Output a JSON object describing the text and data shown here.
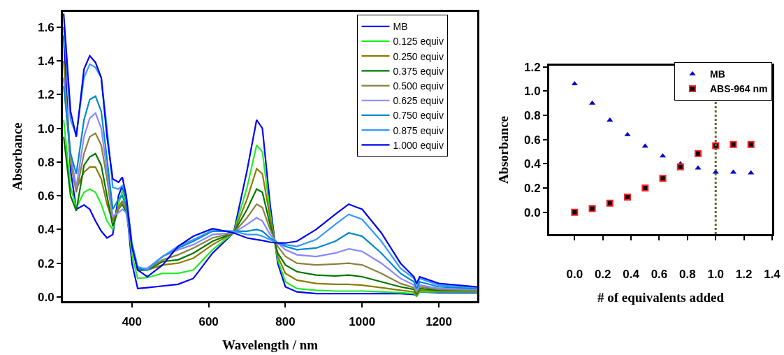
{
  "chart_data": [
    {
      "type": "line",
      "xlabel": "Wavelength / nm",
      "ylabel": "Absorbance",
      "xlim": [
        220,
        1300
      ],
      "ylim": [
        -0.025,
        1.69
      ],
      "xticks": [
        400,
        600,
        800,
        1000,
        1200
      ],
      "yticks": [
        {
          "value": 0,
          "label": "0.0"
        },
        {
          "value": 0.2,
          "label": "0.2"
        },
        {
          "value": 0.4,
          "label": "0.4"
        },
        {
          "value": 0.6,
          "label": "0.6"
        },
        {
          "value": 0.8,
          "label": "0.8"
        },
        {
          "value": 1.0,
          "label": "1.0"
        },
        {
          "value": 1.2,
          "label": "1.2"
        },
        {
          "value": 1.4,
          "label": "1.4"
        },
        {
          "value": 1.6,
          "label": "1.6"
        }
      ],
      "grid": false,
      "legend": "top right",
      "marker": "none",
      "line_style": "solid",
      "x": [
        222,
        240,
        255,
        275,
        290,
        305,
        320,
        335,
        350,
        365,
        375,
        385,
        400,
        415,
        440,
        480,
        520,
        560,
        610,
        665,
        700,
        725,
        740,
        760,
        780,
        800,
        830,
        880,
        930,
        965,
        1000,
        1050,
        1100,
        1135,
        1142,
        1150,
        1200,
        1300
      ],
      "series": [
        {
          "name": "MB",
          "color": "#0000ff",
          "values": [
            1.55,
            0.75,
            0.52,
            0.545,
            0.52,
            0.45,
            0.39,
            0.35,
            0.37,
            0.6,
            0.66,
            0.55,
            0.2,
            0.05,
            0.055,
            0.065,
            0.075,
            0.11,
            0.26,
            0.38,
            0.75,
            1.05,
            1.0,
            0.55,
            0.2,
            0.06,
            0.03,
            0.02,
            0.02,
            0.02,
            0.02,
            0.02,
            0.02,
            0.015,
            0.005,
            0.03,
            0.025,
            0.025
          ]
        },
        {
          "name": "0.125 equiv",
          "color": "#22ee22",
          "values": [
            1.05,
            0.65,
            0.53,
            0.62,
            0.64,
            0.62,
            0.55,
            0.45,
            0.4,
            0.55,
            0.63,
            0.55,
            0.25,
            0.11,
            0.115,
            0.14,
            0.14,
            0.16,
            0.28,
            0.38,
            0.65,
            0.9,
            0.86,
            0.5,
            0.22,
            0.09,
            0.05,
            0.04,
            0.035,
            0.035,
            0.035,
            0.03,
            0.025,
            0.02,
            0.005,
            0.03,
            0.03,
            0.03
          ]
        },
        {
          "name": "0.250 equiv",
          "color": "#8b7d00",
          "values": [
            1.4,
            0.8,
            0.64,
            0.74,
            0.77,
            0.77,
            0.7,
            0.55,
            0.45,
            0.53,
            0.57,
            0.52,
            0.3,
            0.16,
            0.16,
            0.19,
            0.2,
            0.23,
            0.31,
            0.38,
            0.58,
            0.76,
            0.73,
            0.47,
            0.24,
            0.14,
            0.1,
            0.08,
            0.075,
            0.075,
            0.07,
            0.055,
            0.04,
            0.03,
            0.01,
            0.04,
            0.035,
            0.035
          ]
        },
        {
          "name": "0.375 equiv",
          "color": "#007700",
          "values": [
            0.95,
            0.6,
            0.51,
            0.78,
            0.83,
            0.85,
            0.78,
            0.6,
            0.42,
            0.52,
            0.55,
            0.5,
            0.3,
            0.16,
            0.16,
            0.21,
            0.22,
            0.26,
            0.33,
            0.38,
            0.52,
            0.64,
            0.62,
            0.43,
            0.26,
            0.19,
            0.15,
            0.13,
            0.125,
            0.13,
            0.12,
            0.09,
            0.06,
            0.045,
            0.02,
            0.05,
            0.04,
            0.04
          ]
        },
        {
          "name": "0.500 equiv",
          "color": "#8b8040",
          "values": [
            1.3,
            0.8,
            0.62,
            0.85,
            0.95,
            0.97,
            0.9,
            0.7,
            0.46,
            0.52,
            0.56,
            0.52,
            0.3,
            0.17,
            0.165,
            0.22,
            0.25,
            0.29,
            0.35,
            0.38,
            0.47,
            0.55,
            0.53,
            0.4,
            0.3,
            0.24,
            0.2,
            0.19,
            0.195,
            0.2,
            0.19,
            0.14,
            0.08,
            0.055,
            0.025,
            0.06,
            0.045,
            0.04
          ]
        },
        {
          "name": "0.625 equiv",
          "color": "#8888ff",
          "values": [
            1.3,
            0.85,
            0.65,
            0.95,
            1.06,
            1.09,
            1.0,
            0.75,
            0.48,
            0.5,
            0.52,
            0.5,
            0.3,
            0.17,
            0.17,
            0.24,
            0.28,
            0.31,
            0.37,
            0.38,
            0.43,
            0.47,
            0.45,
            0.37,
            0.32,
            0.28,
            0.25,
            0.24,
            0.26,
            0.285,
            0.27,
            0.2,
            0.11,
            0.07,
            0.035,
            0.07,
            0.05,
            0.045
          ]
        },
        {
          "name": "0.750 equiv",
          "color": "#0088cc",
          "values": [
            1.25,
            0.85,
            0.73,
            1.05,
            1.17,
            1.19,
            1.1,
            0.82,
            0.52,
            0.58,
            0.6,
            0.54,
            0.3,
            0.17,
            0.16,
            0.24,
            0.29,
            0.33,
            0.39,
            0.39,
            0.39,
            0.4,
            0.39,
            0.35,
            0.32,
            0.3,
            0.28,
            0.29,
            0.33,
            0.38,
            0.36,
            0.26,
            0.14,
            0.09,
            0.05,
            0.09,
            0.06,
            0.05
          ]
        },
        {
          "name": "0.875 equiv",
          "color": "#3399ff",
          "values": [
            1.6,
            1.05,
            0.96,
            1.3,
            1.38,
            1.36,
            1.3,
            1.0,
            0.65,
            0.64,
            0.66,
            0.6,
            0.32,
            0.18,
            0.16,
            0.24,
            0.3,
            0.34,
            0.395,
            0.39,
            0.37,
            0.37,
            0.36,
            0.34,
            0.32,
            0.31,
            0.3,
            0.34,
            0.43,
            0.49,
            0.46,
            0.33,
            0.17,
            0.11,
            0.07,
            0.11,
            0.07,
            0.055
          ]
        },
        {
          "name": "1.000 equiv",
          "color": "#0000ee",
          "values": [
            1.68,
            1.1,
            0.95,
            1.35,
            1.43,
            1.39,
            1.3,
            0.95,
            0.7,
            0.68,
            0.71,
            0.6,
            0.3,
            0.16,
            0.12,
            0.19,
            0.3,
            0.36,
            0.405,
            0.38,
            0.35,
            0.34,
            0.335,
            0.325,
            0.32,
            0.32,
            0.33,
            0.4,
            0.49,
            0.55,
            0.52,
            0.38,
            0.2,
            0.12,
            0.08,
            0.12,
            0.08,
            0.06
          ]
        }
      ]
    },
    {
      "type": "scatter",
      "xlabel": "# of equivalents added",
      "ylabel": "Absorbance",
      "xlim": [
        -0.18,
        1.4
      ],
      "ylim": [
        -0.18,
        1.21
      ],
      "xticks": [
        {
          "value": 0,
          "label": "0.0"
        },
        {
          "value": 0.2,
          "label": "0.2"
        },
        {
          "value": 0.4,
          "label": "0.4"
        },
        {
          "value": 0.6,
          "label": "0.6"
        },
        {
          "value": 0.8,
          "label": "0.8"
        },
        {
          "value": 1.0,
          "label": "1.0"
        },
        {
          "value": 1.2,
          "label": "1.2"
        },
        {
          "value": 1.4,
          "label": "1.4"
        }
      ],
      "yticks": [
        {
          "value": 0,
          "label": "0.0"
        },
        {
          "value": 0.2,
          "label": "0.2"
        },
        {
          "value": 0.4,
          "label": "0.4"
        },
        {
          "value": 0.6,
          "label": "0.6"
        },
        {
          "value": 0.8,
          "label": "0.8"
        },
        {
          "value": 1.0,
          "label": "1.0"
        },
        {
          "value": 1.2,
          "label": "1.2"
        }
      ],
      "grid": false,
      "legend": "top right",
      "x": [
        0,
        0.125,
        0.25,
        0.375,
        0.5,
        0.625,
        0.75,
        0.875,
        1.0,
        1.125,
        1.25
      ],
      "series": [
        {
          "name": "MB",
          "color": "#0000cc",
          "marker": "triangle",
          "values": [
            1.06,
            0.9,
            0.76,
            0.64,
            0.545,
            0.465,
            0.4,
            0.365,
            0.33,
            0.33,
            0.325
          ]
        },
        {
          "name": "ABS-964 nm",
          "color": "#000000",
          "marker": "square",
          "values": [
            0,
            0.03,
            0.075,
            0.125,
            0.2,
            0.28,
            0.375,
            0.485,
            0.55,
            0.56,
            0.56
          ]
        }
      ],
      "ref_lines": [
        {
          "axis": "x",
          "value": 1.0,
          "color": "#556b2f",
          "line_style": "dotted"
        }
      ]
    }
  ]
}
